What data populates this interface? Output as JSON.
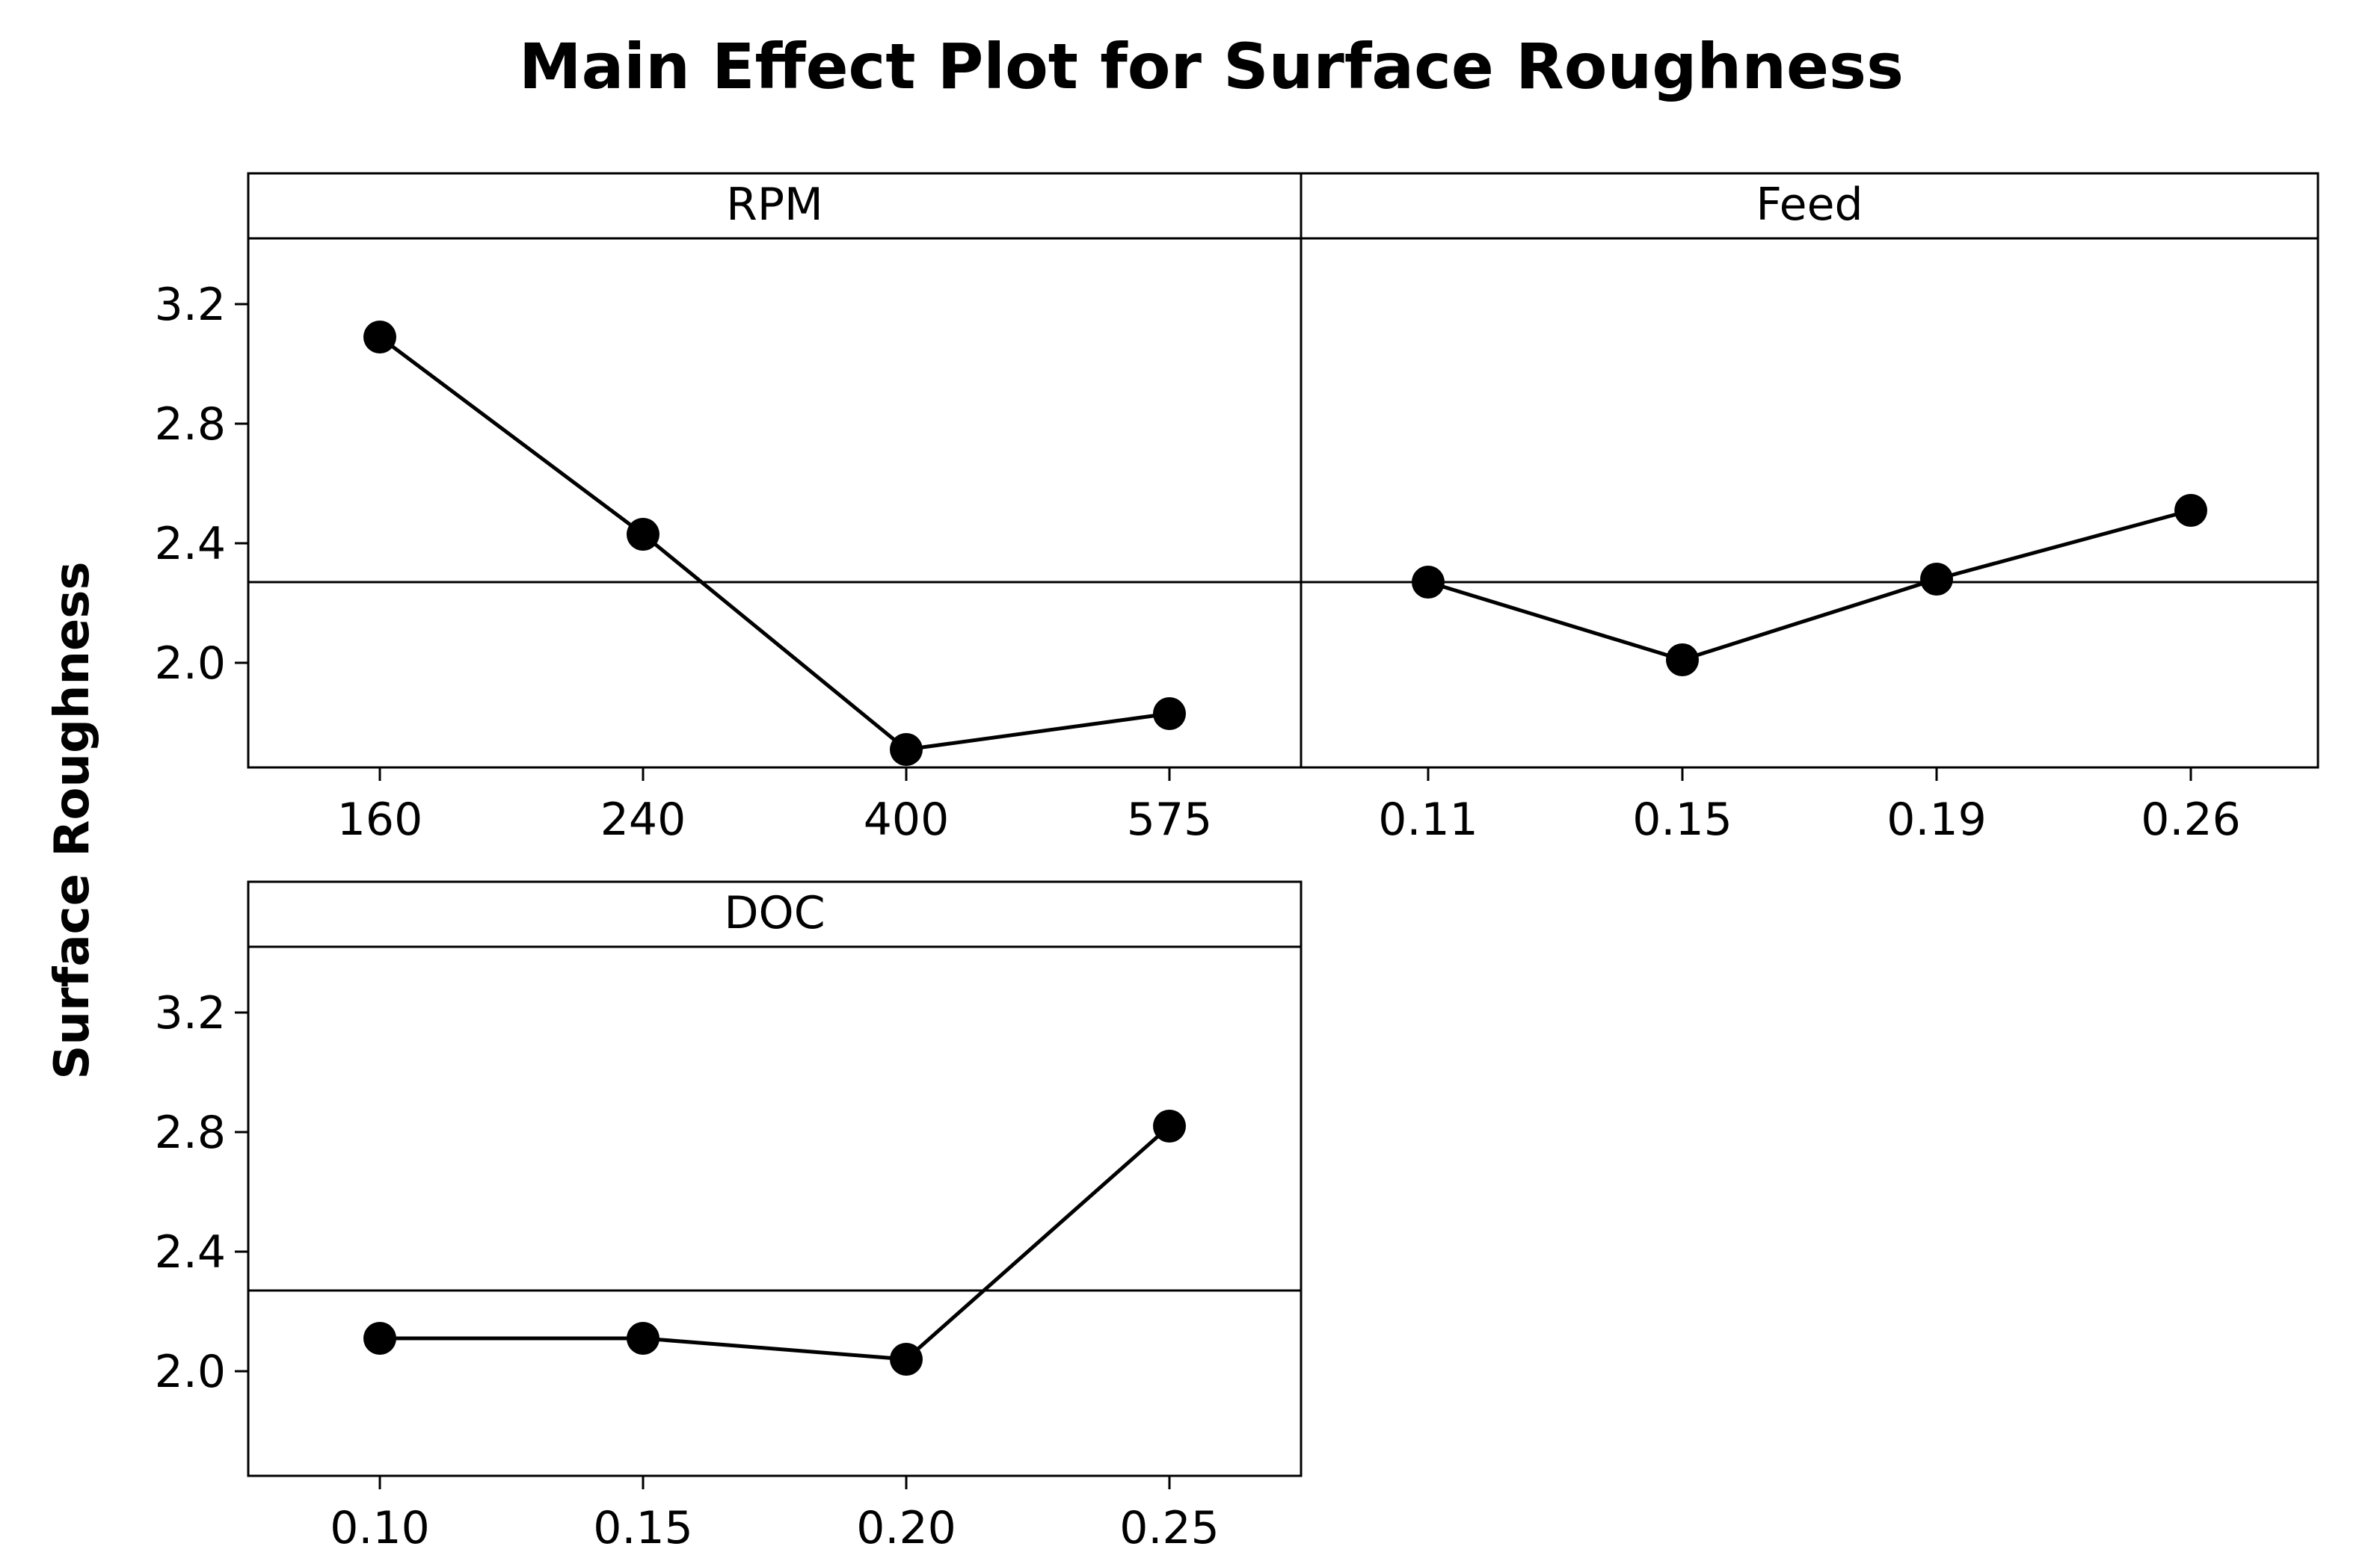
{
  "chart_data": {
    "type": "line",
    "title": "Main Effect Plot for Surface Roughness",
    "ylabel": "Surface Roughness",
    "ylim": [
      1.65,
      3.42
    ],
    "yticks": [
      "2.0",
      "2.4",
      "2.8",
      "3.2"
    ],
    "overall_mean": 2.27,
    "panels": [
      {
        "name": "RPM",
        "categories": [
          "160",
          "240",
          "400",
          "575"
        ],
        "values": [
          3.09,
          2.43,
          1.71,
          1.83
        ]
      },
      {
        "name": "Feed",
        "categories": [
          "0.11",
          "0.15",
          "0.19",
          "0.26"
        ],
        "values": [
          2.27,
          2.01,
          2.28,
          2.51
        ]
      },
      {
        "name": "DOC",
        "categories": [
          "0.10",
          "0.15",
          "0.20",
          "0.25"
        ],
        "values": [
          2.11,
          2.11,
          2.04,
          2.82
        ]
      }
    ]
  }
}
